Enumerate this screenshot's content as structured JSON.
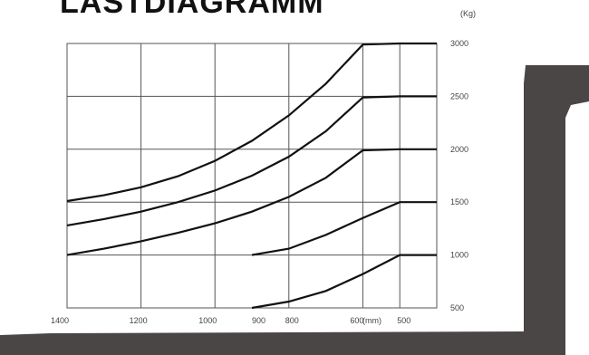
{
  "title": "LASTDIAGRAMM",
  "chart_data": {
    "type": "line",
    "title": "LASTDIAGRAMM",
    "x_unit": "(mm)",
    "y_unit": "(Kg)",
    "x_ticks": [
      1400,
      1200,
      1000,
      900,
      800,
      600,
      500
    ],
    "y_ticks": [
      3000,
      2500,
      2000,
      1500,
      1000,
      500
    ],
    "xlim": [
      1400,
      400
    ],
    "ylim": [
      500,
      3000
    ],
    "grid": true,
    "series": [
      {
        "x": [
          1400,
          1300,
          1200,
          1100,
          1000,
          900,
          800,
          700,
          600,
          500,
          400
        ],
        "values": [
          1510,
          1565,
          1640,
          1745,
          1890,
          2080,
          2320,
          2620,
          2990,
          3000,
          3000
        ]
      },
      {
        "x": [
          1400,
          1300,
          1200,
          1100,
          1000,
          900,
          800,
          700,
          600,
          500,
          400
        ],
        "values": [
          1280,
          1340,
          1410,
          1500,
          1610,
          1750,
          1930,
          2170,
          2490,
          2500,
          2500
        ]
      },
      {
        "x": [
          1400,
          1300,
          1200,
          1100,
          1000,
          900,
          800,
          700,
          600,
          500,
          400
        ],
        "values": [
          1000,
          1060,
          1130,
          1210,
          1300,
          1410,
          1550,
          1730,
          1990,
          2000,
          2000
        ]
      },
      {
        "x": [
          900,
          800,
          700,
          600,
          500,
          400
        ],
        "values": [
          1000,
          1060,
          1190,
          1350,
          1500,
          1500
        ]
      },
      {
        "x": [
          900,
          800,
          700,
          600,
          500,
          400
        ],
        "values": [
          500,
          560,
          660,
          820,
          1000,
          1000
        ]
      }
    ]
  },
  "colors": {
    "curve": "#111111",
    "grid": "#555555",
    "fork": "#4a4646"
  }
}
